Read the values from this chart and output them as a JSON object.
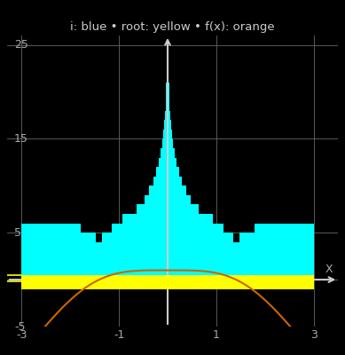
{
  "title": "i: blue • root: yellow • f(x): orange",
  "xlim": [
    -3.3,
    3.5
  ],
  "ylim": [
    -5,
    26
  ],
  "xlabel": "X",
  "xticks": [
    -3,
    -1,
    1,
    3
  ],
  "yticks": [
    -5,
    5,
    15,
    25
  ],
  "bg_color": "#000000",
  "grid_color": "#666666",
  "bar_color": "#00ffff",
  "root_color": "#ffff00",
  "func_color": "#cc6600",
  "axis_color": "#cccccc",
  "title_color": "#cccccc",
  "tick_color": "#aaaaaa",
  "max_iter": 25,
  "x_start": -3.0,
  "x_end": 3.0,
  "n_points": 2000
}
